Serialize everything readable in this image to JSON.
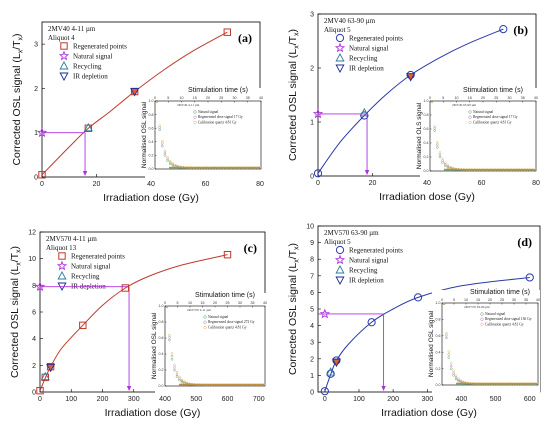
{
  "colors": {
    "a": "#c0392b",
    "b": "#2b3aa8",
    "c": "#c0392b",
    "d": "#2b3aa8",
    "natural": "#b030e0",
    "recycling": "#2a7d9a",
    "ir_depletion_edge": "#1a2a9a",
    "ir_depletion_fill_red": "#e0602a",
    "inset_natural": "#2e8b2e",
    "inset_regen": "#9a5ab5",
    "inset_calib": "#d6a020"
  },
  "chart_data": [
    {
      "id": "a",
      "type": "scatter",
      "panel_label": "(a)",
      "info_line1": "2MV40 4-11 µm",
      "info_line2": "Aliquot 4",
      "xlabel": "Irradiation dose (Gy)",
      "ylabel": "Corrected OSL signal (L",
      "ylabel_sub1": "x",
      "ylabel_mid": "/T",
      "ylabel_sub2": "x",
      "ylabel_end": ")",
      "xlim": [
        0,
        80
      ],
      "ylim": [
        0,
        3.5
      ],
      "xticks": [
        0,
        20,
        40,
        60,
        80
      ],
      "yticks": [
        0,
        1,
        2,
        3
      ],
      "regenerated": [
        [
          0,
          0.05
        ],
        [
          17,
          1.1
        ],
        [
          34,
          1.93
        ],
        [
          68,
          3.27
        ]
      ],
      "natural": [
        [
          0,
          1.0
        ]
      ],
      "recycling": [
        [
          17,
          1.11
        ]
      ],
      "ir_depletion": [
        [
          34,
          1.93
        ]
      ],
      "fit_curve": [
        [
          0,
          0.05
        ],
        [
          10,
          0.68
        ],
        [
          17,
          1.1
        ],
        [
          25,
          1.48
        ],
        [
          34,
          1.93
        ],
        [
          45,
          2.43
        ],
        [
          55,
          2.83
        ],
        [
          68,
          3.27
        ]
      ],
      "de": 15.8,
      "natural_level": 1.0,
      "legend": [
        "Regenerated points",
        "Natural signal",
        "Recycling",
        "IR depletion"
      ],
      "legend_style": "square",
      "inset": {
        "title": "Stimulation time (s)",
        "ylabel": "Normalised OSL signal",
        "top_ticks": [
          "0",
          "5",
          "10",
          "15",
          "20",
          "25",
          "30",
          "35",
          "40"
        ],
        "yticks": [
          "0.0",
          "0.2",
          "0.4",
          "0.6",
          "0.8",
          "1.0"
        ],
        "note": "2MV40 4-11 µm",
        "legend": [
          "Natural signal",
          "Regenerated dose signal 17 Gy",
          "Calibration quartz 4.81 Gy"
        ]
      }
    },
    {
      "id": "b",
      "type": "scatter",
      "panel_label": "(b)",
      "info_line1": "2MV40 63-90 µm",
      "info_line2": "Aliquot 5",
      "xlabel": "Irradiation dose (Gy)",
      "ylabel": "Corrected OSL signal (L",
      "ylabel_sub1": "x",
      "ylabel_mid": "/T",
      "ylabel_sub2": "x",
      "ylabel_end": ")",
      "xlim": [
        0,
        80
      ],
      "ylim": [
        0,
        3
      ],
      "xticks": [
        0,
        20,
        40,
        60,
        80
      ],
      "yticks": [
        0,
        1,
        2,
        3
      ],
      "regenerated": [
        [
          0,
          0.05
        ],
        [
          17,
          1.12
        ],
        [
          34,
          1.87
        ],
        [
          68,
          2.72
        ]
      ],
      "natural": [
        [
          0,
          1.15
        ]
      ],
      "recycling": [
        [
          17,
          1.17
        ]
      ],
      "ir_depletion": [
        [
          34,
          1.84
        ]
      ],
      "fit_curve": [
        [
          0,
          0.05
        ],
        [
          8,
          0.62
        ],
        [
          17,
          1.12
        ],
        [
          25,
          1.51
        ],
        [
          34,
          1.87
        ],
        [
          45,
          2.2
        ],
        [
          55,
          2.45
        ],
        [
          68,
          2.72
        ]
      ],
      "de": 18.0,
      "natural_level": 1.15,
      "legend": [
        "Regenerated points",
        "Natural signal",
        "Recycling",
        "IR depletion"
      ],
      "legend_style": "circle",
      "inset": {
        "title": "Stimulation time (s)",
        "ylabel": "Normalised OLS signal",
        "top_ticks": [
          "0",
          "5",
          "10",
          "15",
          "20",
          "25",
          "30",
          "35",
          "40"
        ],
        "yticks": [
          "0.0",
          "0.2",
          "0.4",
          "0.6",
          "0.8",
          "1.0"
        ],
        "note": "2MV40 63-90 µm",
        "legend": [
          "Natural signal",
          "Regenerated dose signal 17 Gy",
          "Calibration quartz 4.81 Gy"
        ]
      }
    },
    {
      "id": "c",
      "type": "scatter",
      "panel_label": "(c)",
      "info_line1": "2MV570 4-11 µm",
      "info_line2": "Aliquot 13",
      "xlabel": "Irradiation dose (Gy)",
      "ylabel": "Corrected OSL signal (L",
      "ylabel_sub1": "x",
      "ylabel_mid": "/T",
      "ylabel_sub2": "x",
      "ylabel_end": ")",
      "xlim": [
        0,
        720
      ],
      "ylim": [
        0,
        12
      ],
      "xticks": [
        0,
        100,
        200,
        300,
        400,
        500,
        600,
        700
      ],
      "yticks": [
        0,
        2,
        4,
        6,
        8,
        10,
        12
      ],
      "regenerated": [
        [
          0,
          0.1
        ],
        [
          17,
          1.1
        ],
        [
          34,
          1.9
        ],
        [
          137,
          5.0
        ],
        [
          273,
          7.8
        ],
        [
          600,
          10.3
        ]
      ],
      "natural": [
        [
          0,
          7.9
        ]
      ],
      "recycling": [
        [
          17,
          1.15
        ]
      ],
      "ir_depletion": [
        [
          34,
          1.85
        ]
      ],
      "fit_curve": [
        [
          0,
          0.1
        ],
        [
          17,
          1.05
        ],
        [
          34,
          1.9
        ],
        [
          70,
          3.3
        ],
        [
          137,
          5.0
        ],
        [
          200,
          6.5
        ],
        [
          273,
          7.8
        ],
        [
          350,
          8.7
        ],
        [
          450,
          9.5
        ],
        [
          600,
          10.3
        ]
      ],
      "de": 285,
      "natural_level": 7.9,
      "legend": [
        "Regenerated points",
        "Natural signal",
        "Recycling",
        "IR depletion"
      ],
      "legend_style": "square",
      "inset": {
        "title": "Stimulation time (s)",
        "ylabel": "Normalised OSL signal",
        "top_ticks": [
          "0",
          "5",
          "10",
          "15",
          "20",
          "25",
          "30",
          "35",
          "40"
        ],
        "yticks": [
          "0.0",
          "0.2",
          "0.4",
          "0.6",
          "0.8",
          "1.0"
        ],
        "note": "2MV570 4-11 µm",
        "legend": [
          "Natural signal",
          "Regenerated dose signal 273 Gy",
          "Calibration quartz 4.81 Gy"
        ]
      }
    },
    {
      "id": "d",
      "type": "scatter",
      "panel_label": "(d)",
      "info_line1": "2MV570 63-90 µm",
      "info_line2": "Aliquot 5",
      "xlabel": "Irradiation dose (Gy)",
      "ylabel": "Corrected OSL signal (L",
      "ylabel_sub1": "x",
      "ylabel_mid": "/T",
      "ylabel_sub2": "x",
      "ylabel_end": ")",
      "xlim": [
        -20,
        630
      ],
      "ylim": [
        0,
        10
      ],
      "xticks": [
        0,
        100,
        200,
        300,
        400,
        500,
        600
      ],
      "yticks": [
        0,
        1,
        2,
        3,
        4,
        5,
        6,
        7,
        8,
        9,
        10
      ],
      "regenerated": [
        [
          0,
          0.05
        ],
        [
          17,
          1.1
        ],
        [
          34,
          1.9
        ],
        [
          137,
          4.2
        ],
        [
          273,
          5.7
        ],
        [
          600,
          6.9
        ]
      ],
      "natural": [
        [
          0,
          4.7
        ]
      ],
      "recycling": [
        [
          17,
          1.2
        ]
      ],
      "ir_depletion": [
        [
          34,
          1.8
        ]
      ],
      "fit_curve": [
        [
          0,
          0.05
        ],
        [
          17,
          1.05
        ],
        [
          34,
          1.9
        ],
        [
          70,
          2.9
        ],
        [
          137,
          4.2
        ],
        [
          200,
          5.0
        ],
        [
          273,
          5.7
        ],
        [
          400,
          6.4
        ],
        [
          600,
          6.9
        ]
      ],
      "de": 172,
      "natural_level": 4.7,
      "legend": [
        "Regenerated points",
        "Natural signal",
        "Recycling",
        "IR depletion"
      ],
      "legend_style": "circle",
      "inset": {
        "title": "Stimulation time (s)",
        "ylabel": "Normalised OSL signal",
        "top_ticks": [
          "0",
          "5",
          "10",
          "15",
          "20",
          "25",
          "30",
          "35",
          "40"
        ],
        "yticks": [
          "0.0",
          "0.2",
          "0.4",
          "0.6",
          "0.8",
          "1.0"
        ],
        "note": "2MV570 63-90 µm",
        "legend": [
          "Natural signal",
          "Regenerated dose signal 136 Gy",
          "Calibration quartz 4.81 Gy"
        ]
      }
    }
  ]
}
